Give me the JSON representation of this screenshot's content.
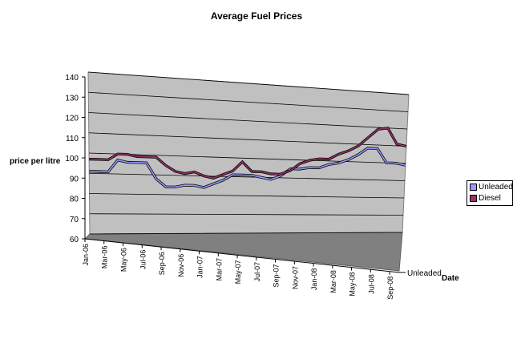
{
  "chart_data": {
    "type": "line",
    "title": "Average Fuel Prices",
    "ylabel": "price per litre",
    "xlabel": "Date",
    "depth_axis_label": "Unleaded",
    "ylim": [
      60,
      140
    ],
    "yticks": [
      60,
      70,
      80,
      90,
      100,
      110,
      120,
      130,
      140
    ],
    "grid": true,
    "legend_position": "right",
    "categories": [
      "Jan-06",
      "Feb-06",
      "Mar-06",
      "Apr-06",
      "May-06",
      "Jun-06",
      "Jul-06",
      "Aug-06",
      "Sep-06",
      "Oct-06",
      "Nov-06",
      "Dec-06",
      "Jan-07",
      "Feb-07",
      "Mar-07",
      "Apr-07",
      "May-07",
      "Jun-07",
      "Jul-07",
      "Aug-07",
      "Sep-07",
      "Oct-07",
      "Nov-07",
      "Dec-07",
      "Jan-08",
      "Feb-08",
      "Mar-08",
      "Apr-08",
      "May-08",
      "Jun-08",
      "Jul-08",
      "Aug-08",
      "Sep-08",
      "Oct-08"
    ],
    "xtick_labels": [
      "Jan-06",
      "Mar-06",
      "May-06",
      "Jul-06",
      "Sep-06",
      "Nov-06",
      "Jan-07",
      "Mar-07",
      "May-07",
      "Jul-07",
      "Sep-07",
      "Nov-07",
      "Jan-08",
      "Mar-08",
      "May-08",
      "Jul-08",
      "Sep-08"
    ],
    "series": [
      {
        "name": "Unleaded",
        "color": "#9999ff",
        "values": [
          91,
          91,
          91,
          97,
          96,
          96,
          96,
          88,
          84,
          84,
          85,
          85,
          84,
          86,
          88,
          91,
          91,
          91,
          90,
          89,
          91,
          95,
          95,
          96,
          96,
          98,
          99,
          101,
          104,
          108,
          108,
          100,
          100,
          99
        ]
      },
      {
        "name": "Diesel",
        "color": "#993366",
        "values": [
          97,
          97,
          97,
          100,
          100,
          99,
          99,
          99,
          95,
          92,
          91,
          92,
          90,
          89,
          91,
          93,
          98,
          93,
          93,
          92,
          92,
          94,
          98,
          100,
          101,
          101,
          104,
          106,
          109,
          114,
          119,
          120,
          111,
          110
        ]
      }
    ]
  }
}
